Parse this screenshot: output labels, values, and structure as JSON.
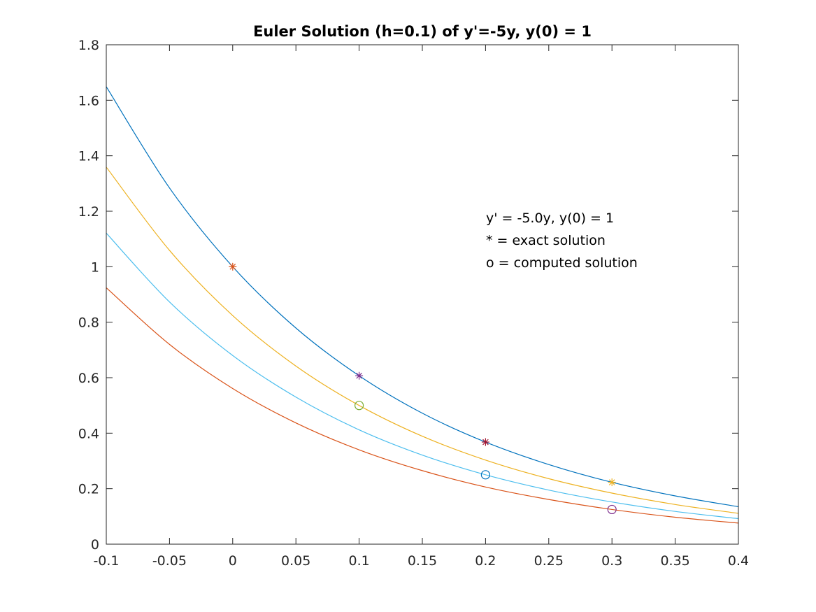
{
  "chart_data": {
    "type": "line",
    "title": "Euler Solution (h=0.1) of y'=-5y, y(0) = 1",
    "xlabel": "",
    "ylabel": "",
    "xlim": [
      -0.1,
      0.4
    ],
    "ylim": [
      0,
      1.8
    ],
    "xticks": [
      -0.1,
      -0.05,
      0,
      0.05,
      0.1,
      0.15,
      0.2,
      0.25,
      0.3,
      0.35,
      0.4
    ],
    "xtick_labels": [
      "-0.1",
      "-0.05",
      "0",
      "0.05",
      "0.1",
      "0.15",
      "0.2",
      "0.25",
      "0.3",
      "0.35",
      "0.4"
    ],
    "yticks": [
      0,
      0.2,
      0.4,
      0.6,
      0.8,
      1,
      1.2,
      1.4,
      1.6,
      1.8
    ],
    "ytick_labels": [
      "0",
      "0.2",
      "0.4",
      "0.6",
      "0.8",
      "1",
      "1.2",
      "1.4",
      "1.6",
      "1.8"
    ],
    "grid": false,
    "annotation_lines": [
      "y' = -5.0y, y(0)  = 1",
      "* = exact solution",
      "o = computed solution"
    ],
    "series": [
      {
        "color": "#0072BD",
        "x": [
          -0.1,
          -0.05,
          0,
          0.05,
          0.1,
          0.15,
          0.2,
          0.25,
          0.3,
          0.35,
          0.4
        ],
        "y": [
          1.649,
          1.284,
          1.0,
          0.779,
          0.607,
          0.472,
          0.368,
          0.287,
          0.223,
          0.174,
          0.135
        ]
      },
      {
        "color": "#EDB120",
        "x": [
          -0.1,
          -0.05,
          0,
          0.05,
          0.1,
          0.15,
          0.2,
          0.25,
          0.3,
          0.35,
          0.4
        ],
        "y": [
          1.359,
          1.059,
          0.824,
          0.642,
          0.5,
          0.389,
          0.303,
          0.236,
          0.184,
          0.143,
          0.111
        ]
      },
      {
        "color": "#4DBEEE",
        "x": [
          -0.1,
          -0.05,
          0,
          0.05,
          0.1,
          0.15,
          0.2,
          0.25,
          0.3,
          0.35,
          0.4
        ],
        "y": [
          1.121,
          0.873,
          0.68,
          0.53,
          0.412,
          0.321,
          0.25,
          0.195,
          0.152,
          0.118,
          0.092
        ]
      },
      {
        "color": "#D95319",
        "x": [
          -0.1,
          -0.05,
          0,
          0.05,
          0.1,
          0.15,
          0.2,
          0.25,
          0.3,
          0.35,
          0.4
        ],
        "y": [
          0.924,
          0.72,
          0.561,
          0.437,
          0.34,
          0.265,
          0.206,
          0.161,
          0.125,
          0.097,
          0.076
        ]
      }
    ],
    "exact_points": [
      {
        "x": 0,
        "y": 1.0,
        "color": "#D95319"
      },
      {
        "x": 0.1,
        "y": 0.607,
        "color": "#7E2F8E"
      },
      {
        "x": 0.2,
        "y": 0.368,
        "color": "#A2142F"
      },
      {
        "x": 0.3,
        "y": 0.223,
        "color": "#EDB120"
      }
    ],
    "computed_points": [
      {
        "x": 0.1,
        "y": 0.5,
        "color": "#77AC30"
      },
      {
        "x": 0.2,
        "y": 0.25,
        "color": "#0072BD"
      },
      {
        "x": 0.3,
        "y": 0.125,
        "color": "#7E2F8E"
      }
    ]
  }
}
